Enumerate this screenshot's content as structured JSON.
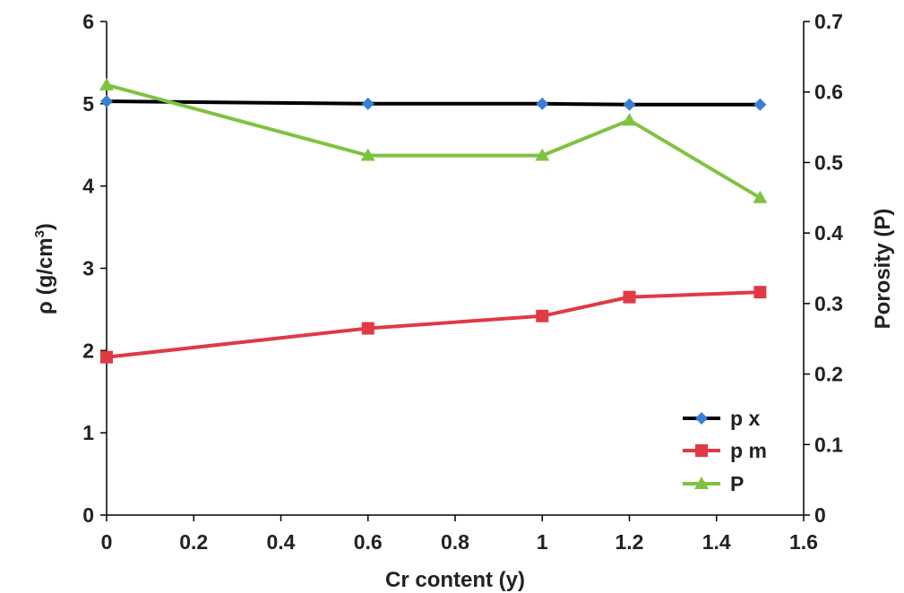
{
  "chart_data": {
    "type": "line",
    "x_axis": {
      "label": "Cr content (y)",
      "range": [
        0,
        1.6
      ],
      "ticks": [
        "0",
        "0.2",
        "0.4",
        "0.6",
        "0.8",
        "1",
        "1.2",
        "1.4",
        "1.6"
      ]
    },
    "y_left": {
      "label_prefix": "ρ (g/cm",
      "label_sup": "3",
      "label_suffix": ")",
      "range": [
        0,
        6
      ],
      "ticks": [
        "0",
        "1",
        "2",
        "3",
        "4",
        "5",
        "6"
      ]
    },
    "y_right": {
      "label": "Porosity (P)",
      "range": [
        0,
        0.7
      ],
      "ticks": [
        "0",
        "0.1",
        "0.2",
        "0.3",
        "0.4",
        "0.5",
        "0.6",
        "0.7"
      ]
    },
    "grid": false,
    "legend_position": "bottom-right",
    "series": [
      {
        "name": "p x",
        "axis": "left",
        "line_color": "#000000",
        "marker": "diamond",
        "marker_color": "#3a7fd5",
        "x": [
          0,
          0.6,
          1,
          1.2,
          1.5
        ],
        "y": [
          5.03,
          5.0,
          5.0,
          4.99,
          4.99
        ]
      },
      {
        "name": "p m",
        "axis": "left",
        "line_color": "#e03a45",
        "marker": "square",
        "marker_color": "#e03a45",
        "x": [
          0,
          0.6,
          1,
          1.2,
          1.5
        ],
        "y": [
          1.92,
          2.27,
          2.42,
          2.65,
          2.71
        ]
      },
      {
        "name": "P",
        "axis": "right",
        "line_color": "#7fc241",
        "marker": "triangle",
        "marker_color": "#7fc241",
        "x": [
          0,
          0.6,
          1,
          1.2,
          1.5
        ],
        "y": [
          0.61,
          0.51,
          0.51,
          0.56,
          0.45
        ]
      }
    ]
  }
}
